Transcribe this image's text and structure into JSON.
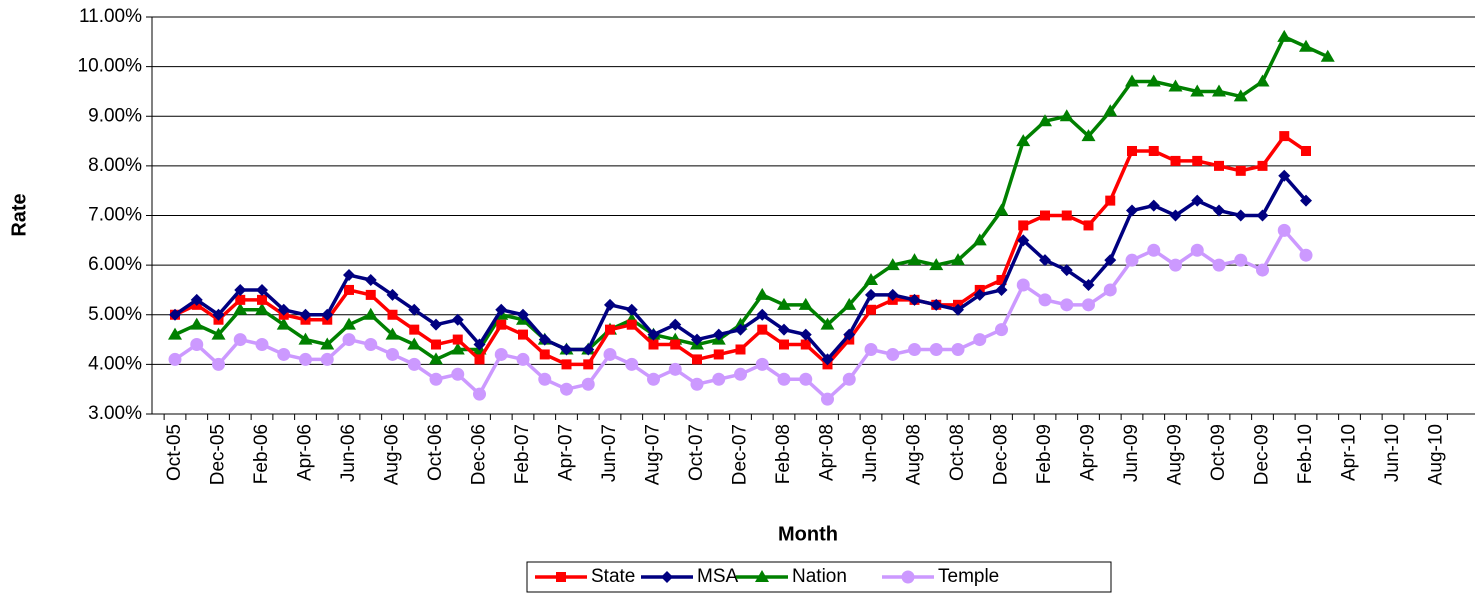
{
  "chart_data": {
    "type": "line",
    "x_label": "Month",
    "y_label": "Rate",
    "categories": [
      "Oct-05",
      null,
      "Dec-05",
      null,
      "Feb-06",
      null,
      "Apr-06",
      null,
      "Jun-06",
      null,
      "Aug-06",
      null,
      "Oct-06",
      null,
      "Dec-06",
      null,
      "Feb-07",
      null,
      "Apr-07",
      null,
      "Jun-07",
      null,
      "Aug-07",
      null,
      "Oct-07",
      null,
      "Dec-07",
      null,
      "Feb-08",
      null,
      "Apr-08",
      null,
      "Jun-08",
      null,
      "Aug-08",
      null,
      "Oct-08",
      null,
      "Dec-08",
      null,
      "Feb-09",
      null,
      "Apr-09",
      null,
      "Jun-09",
      null,
      "Aug-09",
      null,
      "Oct-09",
      null,
      "Dec-09",
      null,
      "Feb-10",
      null,
      "Apr-10",
      null,
      "Jun-10",
      null,
      "Aug-10",
      null
    ],
    "ylim": [
      3,
      11
    ],
    "yticks": [
      {
        "value": 3,
        "label": "3.00%"
      },
      {
        "value": 4,
        "label": "4.00%"
      },
      {
        "value": 5,
        "label": "5.00%"
      },
      {
        "value": 6,
        "label": "6.00%"
      },
      {
        "value": 7,
        "label": "7.00%"
      },
      {
        "value": 8,
        "label": "8.00%"
      },
      {
        "value": 9,
        "label": "9.00%"
      },
      {
        "value": 10,
        "label": "10.00%"
      },
      {
        "value": 11,
        "label": "11.00%"
      }
    ],
    "grid": true,
    "legend": "bottom",
    "series": [
      {
        "name": "State",
        "color": "#ff0000",
        "marker": "square",
        "values": [
          5.0,
          5.2,
          4.9,
          5.3,
          5.3,
          5.0,
          4.9,
          4.9,
          5.5,
          5.4,
          5.0,
          4.7,
          4.4,
          4.5,
          4.1,
          4.8,
          4.6,
          4.2,
          4.0,
          4.0,
          4.7,
          4.8,
          4.4,
          4.4,
          4.1,
          4.2,
          4.3,
          4.7,
          4.4,
          4.4,
          4.0,
          4.5,
          5.1,
          5.3,
          5.3,
          5.2,
          5.2,
          5.5,
          5.7,
          6.8,
          7.0,
          7.0,
          6.8,
          7.3,
          8.3,
          8.3,
          8.1,
          8.1,
          8.0,
          7.9,
          8.0,
          8.6,
          8.3,
          null,
          null,
          null,
          null,
          null,
          null,
          null
        ]
      },
      {
        "name": "MSA",
        "color": "#000080",
        "marker": "diamond",
        "values": [
          5.0,
          5.3,
          5.0,
          5.5,
          5.5,
          5.1,
          5.0,
          5.0,
          5.8,
          5.7,
          5.4,
          5.1,
          4.8,
          4.9,
          4.4,
          5.1,
          5.0,
          4.5,
          4.3,
          4.3,
          5.2,
          5.1,
          4.6,
          4.8,
          4.5,
          4.6,
          4.7,
          5.0,
          4.7,
          4.6,
          4.1,
          4.6,
          5.4,
          5.4,
          5.3,
          5.2,
          5.1,
          5.4,
          5.5,
          6.5,
          6.1,
          5.9,
          5.6,
          6.1,
          7.1,
          7.2,
          7.0,
          7.3,
          7.1,
          7.0,
          7.0,
          7.8,
          7.3,
          null,
          null,
          null,
          null,
          null,
          null,
          null
        ]
      },
      {
        "name": "Nation",
        "color": "#008000",
        "marker": "triangle",
        "values": [
          4.6,
          4.8,
          4.6,
          5.1,
          5.1,
          4.8,
          4.5,
          4.4,
          4.8,
          5.0,
          4.6,
          4.4,
          4.1,
          4.3,
          4.3,
          5.0,
          4.9,
          4.5,
          4.3,
          4.3,
          4.7,
          4.9,
          4.6,
          4.5,
          4.4,
          4.5,
          4.8,
          5.4,
          5.2,
          5.2,
          4.8,
          5.2,
          5.7,
          6.0,
          6.1,
          6.0,
          6.1,
          6.5,
          7.1,
          8.5,
          8.9,
          9.0,
          8.6,
          9.1,
          9.7,
          9.7,
          9.6,
          9.5,
          9.5,
          9.4,
          9.7,
          10.6,
          10.4,
          10.2,
          null,
          null,
          null,
          null,
          null,
          null
        ]
      },
      {
        "name": "Temple",
        "color": "#cc99ff",
        "marker": "circle",
        "values": [
          4.1,
          4.4,
          4.0,
          4.5,
          4.4,
          4.2,
          4.1,
          4.1,
          4.5,
          4.4,
          4.2,
          4.0,
          3.7,
          3.8,
          3.4,
          4.2,
          4.1,
          3.7,
          3.5,
          3.6,
          4.2,
          4.0,
          3.7,
          3.9,
          3.6,
          3.7,
          3.8,
          4.0,
          3.7,
          3.7,
          3.3,
          3.7,
          4.3,
          4.2,
          4.3,
          4.3,
          4.3,
          4.5,
          4.7,
          5.6,
          5.3,
          5.2,
          5.2,
          5.5,
          6.1,
          6.3,
          6.0,
          6.3,
          6.0,
          6.1,
          5.9,
          6.7,
          6.2,
          null,
          null,
          null,
          null,
          null,
          null,
          null
        ]
      }
    ]
  }
}
